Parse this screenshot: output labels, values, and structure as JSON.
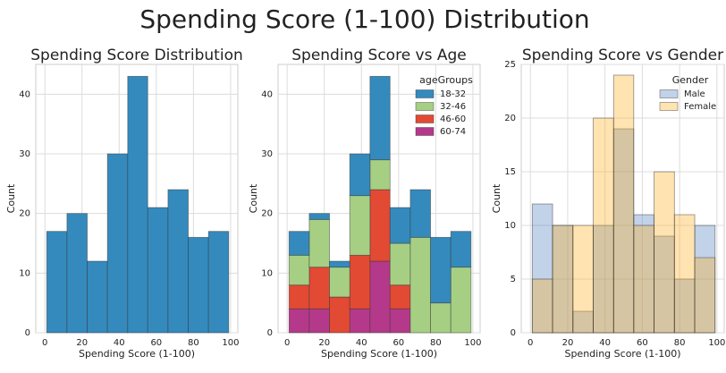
{
  "title": "Spending Score (1-100) Distribution",
  "chart_data": [
    {
      "type": "histogram",
      "title": "Spending Score Distribution",
      "xlabel": "Spending Score (1-100)",
      "ylabel": "Count",
      "bins": [
        1,
        11.9,
        22.8,
        33.7,
        44.6,
        55.4,
        66.3,
        77.2,
        88.1,
        99
      ],
      "series": [
        {
          "name": null,
          "color": "#348abd",
          "values": [
            17,
            20,
            12,
            30,
            43,
            21,
            24,
            16,
            17
          ]
        }
      ],
      "xlim": [
        -4.9,
        103.9
      ],
      "xticks": [
        0,
        20,
        40,
        60,
        80,
        100
      ],
      "ylim": [
        0,
        45
      ],
      "yticks": [
        0,
        10,
        20,
        30,
        40
      ],
      "grid": true
    },
    {
      "type": "histogram",
      "title": "Spending Score vs Age",
      "xlabel": "Spending Score (1-100)",
      "ylabel": "Count",
      "stacked": true,
      "legend_title": "ageGroups",
      "legend": "upper right",
      "bins": [
        1,
        11.9,
        22.8,
        33.7,
        44.6,
        55.4,
        66.3,
        77.2,
        88.1,
        99
      ],
      "series": [
        {
          "name": "60-74",
          "color": "#b5398a",
          "values": [
            4,
            4,
            0,
            4,
            12,
            4,
            0,
            0,
            0
          ]
        },
        {
          "name": "46-60",
          "color": "#e24a33",
          "values": [
            4,
            7,
            6,
            9,
            12,
            4,
            0,
            0,
            0
          ]
        },
        {
          "name": "32-46",
          "color": "#a6cf84",
          "values": [
            5,
            8,
            5,
            10,
            5,
            7,
            16,
            5,
            11
          ]
        },
        {
          "name": "18-32",
          "color": "#348abd",
          "values": [
            4,
            1,
            1,
            7,
            14,
            6,
            8,
            11,
            6
          ]
        }
      ],
      "legend_order": [
        3,
        2,
        1,
        0
      ],
      "xlim": [
        -4.9,
        103.9
      ],
      "xticks": [
        0,
        20,
        40,
        60,
        80,
        100
      ],
      "ylim": [
        0,
        45
      ],
      "yticks": [
        0,
        10,
        20,
        30,
        40
      ],
      "grid": true
    },
    {
      "type": "histogram",
      "title": "Spending Score vs Gender",
      "xlabel": "Spending Score (1-100)",
      "ylabel": "Count",
      "stacked": false,
      "legend_title": "Gender",
      "legend": "upper right",
      "opacity": 0.35,
      "bins": [
        1,
        11.9,
        22.8,
        33.7,
        44.6,
        55.4,
        66.3,
        77.2,
        88.1,
        99
      ],
      "series": [
        {
          "name": "Male",
          "color": "#4c7fbf",
          "values": [
            12,
            10,
            2,
            10,
            19,
            11,
            9,
            5,
            10
          ]
        },
        {
          "name": "Female",
          "color": "#ffb020",
          "values": [
            5,
            10,
            10,
            20,
            24,
            10,
            15,
            11,
            7
          ]
        }
      ],
      "legend_order": [
        0,
        1
      ],
      "xlim": [
        -4.9,
        103.9
      ],
      "xticks": [
        0,
        20,
        40,
        60,
        80,
        100
      ],
      "ylim": [
        0,
        25
      ],
      "yticks": [
        0,
        5,
        10,
        15,
        20,
        25
      ],
      "grid": true
    }
  ]
}
